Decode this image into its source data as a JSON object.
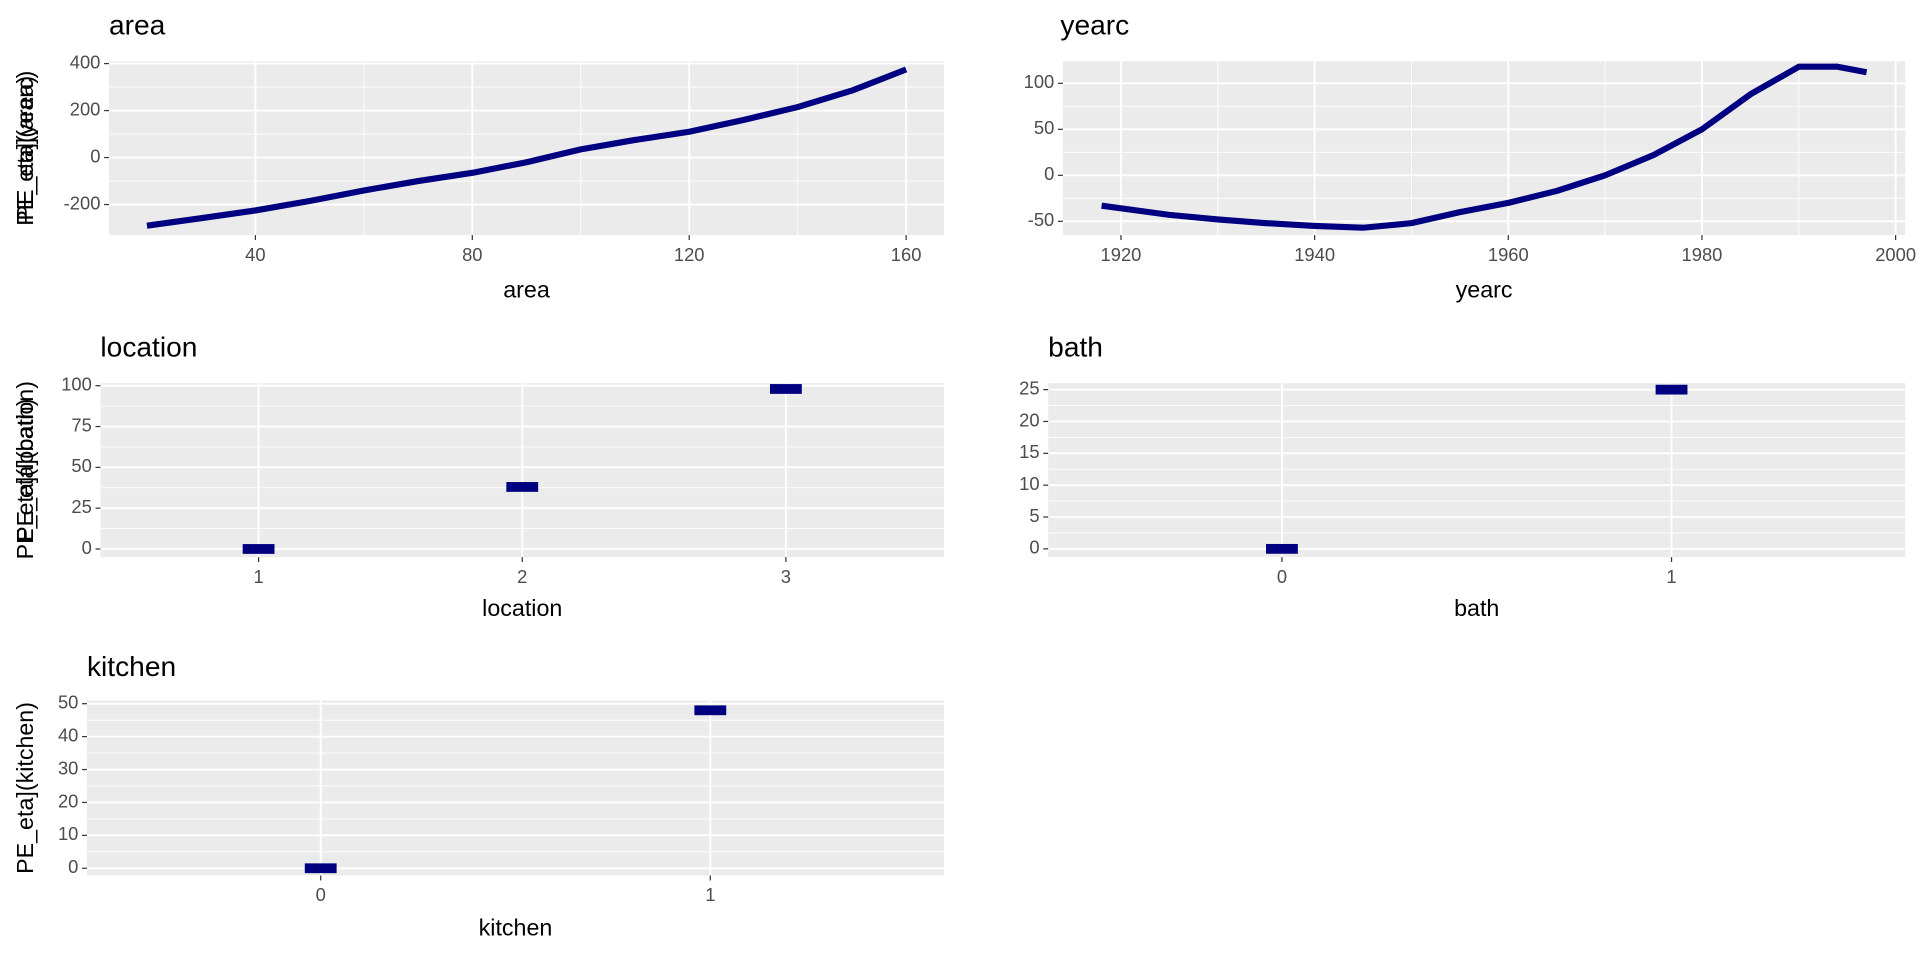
{
  "chart_data": [
    {
      "type": "line",
      "title": "area",
      "x_label": "area",
      "y_label": "PE_eta](area)",
      "color": "#000080",
      "grid": true,
      "x": [
        20,
        30,
        40,
        50,
        60,
        70,
        80,
        90,
        100,
        110,
        120,
        130,
        140,
        150,
        160
      ],
      "values": [
        -290,
        -258,
        -225,
        -185,
        -140,
        -100,
        -65,
        -20,
        35,
        75,
        110,
        160,
        215,
        285,
        375
      ],
      "xlim": [
        13,
        167
      ],
      "ylim": [
        -330,
        410
      ],
      "xticks": [
        40,
        80,
        120,
        160
      ],
      "yticks": [
        -200,
        0,
        200,
        400
      ]
    },
    {
      "type": "line",
      "title": "yearc",
      "x_label": "yearc",
      "y_label": "PE_eta](yearc)",
      "color": "#000080",
      "grid": true,
      "x": [
        1918,
        1925,
        1930,
        1935,
        1940,
        1945,
        1950,
        1955,
        1960,
        1965,
        1970,
        1975,
        1980,
        1985,
        1990,
        1994,
        1997
      ],
      "values": [
        -33,
        -43,
        -48,
        -52,
        -55,
        -57,
        -52,
        -40,
        -30,
        -17,
        0,
        22,
        50,
        88,
        118,
        118,
        112
      ],
      "xlim": [
        1914,
        2001
      ],
      "ylim": [
        -65,
        124
      ],
      "xticks": [
        1920,
        1940,
        1960,
        1980,
        2000
      ],
      "yticks": [
        -50,
        0,
        50,
        100
      ]
    },
    {
      "type": "point",
      "title": "location",
      "x_label": "location",
      "y_label": "PE_eta](location)",
      "color": "#000080",
      "grid": true,
      "categories": [
        "1",
        "2",
        "3"
      ],
      "values": [
        0,
        38,
        98
      ],
      "ylim": [
        -5,
        101.5
      ],
      "yticks": [
        0,
        25,
        50,
        75,
        100
      ]
    },
    {
      "type": "point",
      "title": "bath",
      "x_label": "bath",
      "y_label": "PE_eta](bath)",
      "color": "#000080",
      "grid": true,
      "categories": [
        "0",
        "1"
      ],
      "values": [
        0,
        25
      ],
      "ylim": [
        -1.3,
        26
      ],
      "yticks": [
        0,
        5,
        10,
        15,
        20,
        25
      ]
    },
    {
      "type": "point",
      "title": "kitchen",
      "x_label": "kitchen",
      "y_label": "PE_eta](kitchen)",
      "color": "#000080",
      "grid": true,
      "categories": [
        "0",
        "1"
      ],
      "values": [
        0,
        48
      ],
      "ylim": [
        -2.2,
        51
      ],
      "yticks": [
        0,
        10,
        20,
        30,
        40,
        50
      ]
    }
  ]
}
